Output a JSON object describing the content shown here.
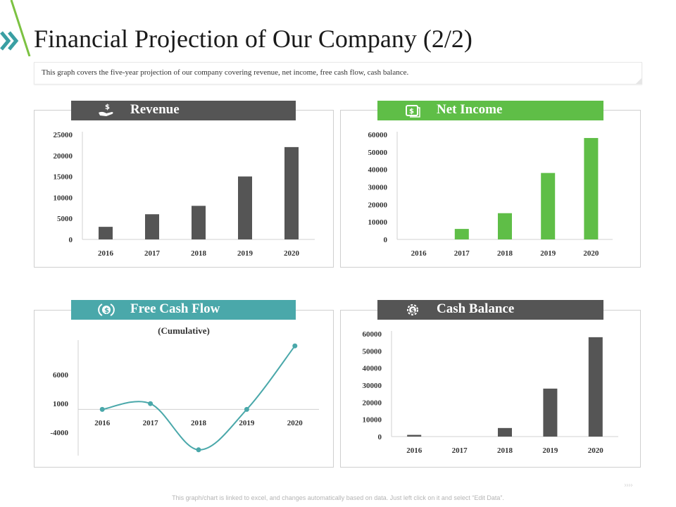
{
  "page": {
    "title": "Financial Projection of Our Company (2/2)",
    "description": "This graph covers the five-year projection of our company covering revenue, net income, free cash flow, cash balance.",
    "footer_note": "This graph/chart is linked to excel, and changes automatically based on data. Just left click on it and select “Edit Data”.",
    "footer_arrows": "››››"
  },
  "colors": {
    "dark_gray": "#555555",
    "green": "#5fbe47",
    "teal": "#4aa8aa",
    "chevron": "#3a9fa3",
    "accent_green": "#7cc242"
  },
  "icons": {
    "revenue": "hand-dollar-icon",
    "net_income": "money-stack-icon",
    "free_cash_flow": "dollar-cycle-icon",
    "cash_balance": "dollar-gear-icon"
  },
  "chart_data": [
    {
      "id": "revenue",
      "type": "bar",
      "title": "Revenue",
      "categories": [
        "2016",
        "2017",
        "2018",
        "2019",
        "2020"
      ],
      "values": [
        3000,
        6000,
        8000,
        15000,
        22000
      ],
      "ylim": [
        0,
        25000
      ],
      "yticks": [
        0,
        5000,
        10000,
        15000,
        20000,
        25000
      ],
      "color": "#555555",
      "banner_color": "#555555",
      "grid": false
    },
    {
      "id": "net_income",
      "type": "bar",
      "title": "Net Income",
      "categories": [
        "2016",
        "2017",
        "2018",
        "2019",
        "2020"
      ],
      "values": [
        0,
        6000,
        15000,
        38000,
        58000
      ],
      "ylim": [
        0,
        60000
      ],
      "yticks": [
        0,
        10000,
        20000,
        30000,
        40000,
        50000,
        60000
      ],
      "color": "#5fbe47",
      "banner_color": "#5fbe47",
      "grid": false
    },
    {
      "id": "free_cash_flow",
      "type": "line",
      "title": "Free Cash Flow",
      "subtitle": "(Cumulative)",
      "categories": [
        "2016",
        "2017",
        "2018",
        "2019",
        "2020"
      ],
      "values": [
        0,
        1000,
        -7000,
        0,
        11000
      ],
      "ylim": [
        -8000,
        12000
      ],
      "yticks": [
        -4000,
        1000,
        6000
      ],
      "color": "#4aa8aa",
      "banner_color": "#4aa8aa",
      "grid": false
    },
    {
      "id": "cash_balance",
      "type": "bar",
      "title": "Cash Balance",
      "categories": [
        "2016",
        "2017",
        "2018",
        "2019",
        "2020"
      ],
      "values": [
        1000,
        0,
        5000,
        28000,
        58000
      ],
      "ylim": [
        0,
        60000
      ],
      "yticks": [
        0,
        10000,
        20000,
        30000,
        40000,
        50000,
        60000
      ],
      "color": "#555555",
      "banner_color": "#555555",
      "grid": false
    }
  ]
}
